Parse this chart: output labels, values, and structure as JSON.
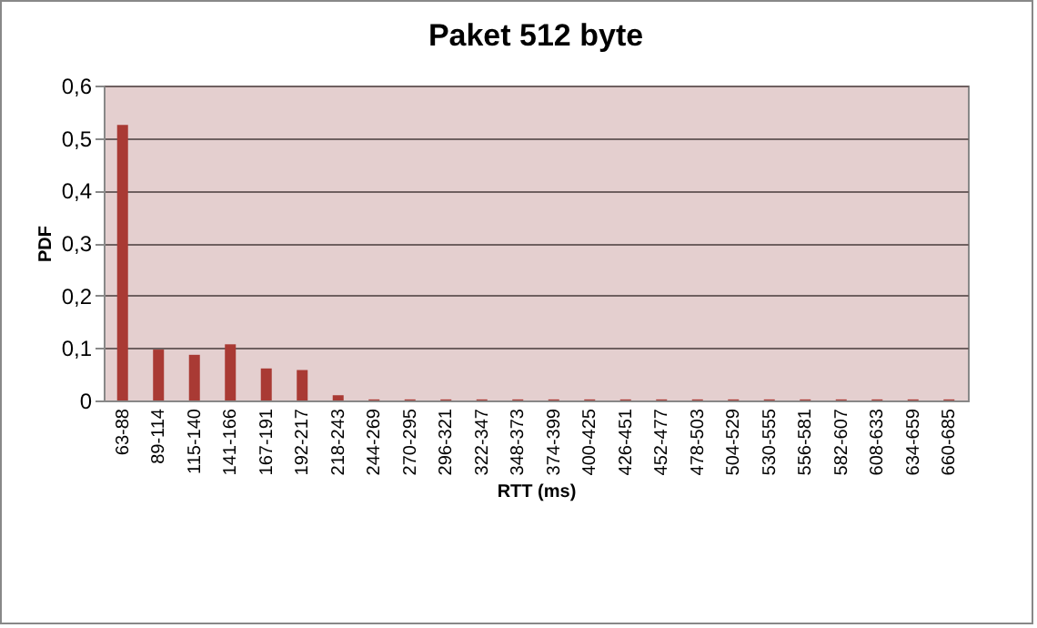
{
  "chart_data": {
    "type": "bar",
    "title": "Paket 512 byte",
    "xlabel": "RTT (ms)",
    "ylabel": "PDF",
    "categories": [
      "63-88",
      "89-114",
      "115-140",
      "141-166",
      "167-191",
      "192-217",
      "218-243",
      "244-269",
      "270-295",
      "296-321",
      "322-347",
      "348-373",
      "374-399",
      "400-425",
      "426-451",
      "452-477",
      "478-503",
      "504-529",
      "530-555",
      "556-581",
      "582-607",
      "608-633",
      "634-659",
      "660-685"
    ],
    "values": [
      0.525,
      0.097,
      0.087,
      0.107,
      0.061,
      0.058,
      0.01,
      0.002,
      0.002,
      0.002,
      0.002,
      0.002,
      0.002,
      0.002,
      0.002,
      0.002,
      0.002,
      0.002,
      0.002,
      0.002,
      0.002,
      0.002,
      0.002,
      0.002
    ],
    "color": "#a93a34",
    "ylim": [
      0,
      0.6
    ],
    "yticks": [
      0,
      {
        "value": 0.1,
        "label": "0,1"
      },
      {
        "value": 0.2,
        "label": "0,2"
      },
      {
        "value": 0.3,
        "label": "0,3"
      },
      {
        "value": 0.4,
        "label": "0,4"
      },
      {
        "value": 0.5,
        "label": "0,5"
      },
      {
        "value": 0.6,
        "label": "0,6"
      }
    ],
    "grid": "y"
  }
}
